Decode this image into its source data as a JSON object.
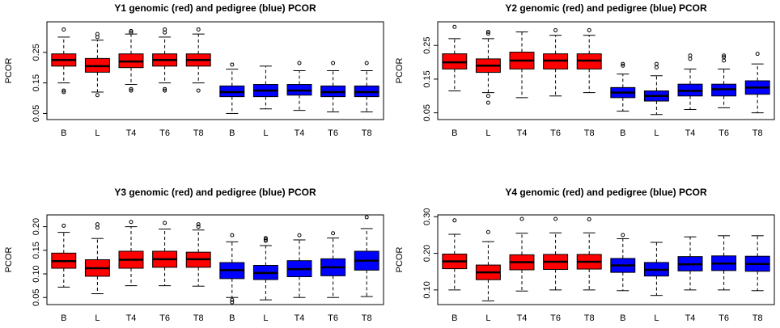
{
  "chart_data": [
    {
      "type": "boxplot",
      "title": "Y1 genomic (red) and pedigree (blue) PCOR",
      "ylabel": "PCOR",
      "ylim": [
        0.03,
        0.35
      ],
      "yticks": [
        0.05,
        0.15,
        0.25
      ],
      "ytick_labels": [
        "0.05",
        "0.15",
        "0.25"
      ],
      "categories": [
        "B",
        "L",
        "T4",
        "T6",
        "T8",
        "B",
        "L",
        "T4",
        "T6",
        "T8"
      ],
      "colors": [
        "#ff0000",
        "#ff0000",
        "#ff0000",
        "#ff0000",
        "#ff0000",
        "#0000ff",
        "#0000ff",
        "#0000ff",
        "#0000ff",
        "#0000ff"
      ],
      "boxes": [
        {
          "min": 0.15,
          "q1": 0.205,
          "median": 0.225,
          "q3": 0.245,
          "max": 0.3,
          "outliers": [
            0.325,
            0.125,
            0.12
          ]
        },
        {
          "min": 0.12,
          "q1": 0.185,
          "median": 0.205,
          "q3": 0.23,
          "max": 0.29,
          "outliers": [
            0.31,
            0.3,
            0.11
          ]
        },
        {
          "min": 0.145,
          "q1": 0.2,
          "median": 0.22,
          "q3": 0.245,
          "max": 0.31,
          "outliers": [
            0.32,
            0.315,
            0.13,
            0.125
          ]
        },
        {
          "min": 0.15,
          "q1": 0.205,
          "median": 0.225,
          "q3": 0.245,
          "max": 0.3,
          "outliers": [
            0.325,
            0.315,
            0.13,
            0.125
          ]
        },
        {
          "min": 0.15,
          "q1": 0.205,
          "median": 0.225,
          "q3": 0.245,
          "max": 0.31,
          "outliers": [
            0.325,
            0.125
          ]
        },
        {
          "min": 0.05,
          "q1": 0.105,
          "median": 0.12,
          "q3": 0.14,
          "max": 0.195,
          "outliers": [
            0.21
          ]
        },
        {
          "min": 0.065,
          "q1": 0.105,
          "median": 0.125,
          "q3": 0.145,
          "max": 0.205,
          "outliers": []
        },
        {
          "min": 0.06,
          "q1": 0.11,
          "median": 0.125,
          "q3": 0.145,
          "max": 0.19,
          "outliers": [
            0.215
          ]
        },
        {
          "min": 0.055,
          "q1": 0.105,
          "median": 0.12,
          "q3": 0.14,
          "max": 0.19,
          "outliers": [
            0.215
          ]
        },
        {
          "min": 0.055,
          "q1": 0.105,
          "median": 0.12,
          "q3": 0.14,
          "max": 0.19,
          "outliers": [
            0.215
          ]
        }
      ]
    },
    {
      "type": "boxplot",
      "title": "Y2 genomic (red) and pedigree (blue) PCOR",
      "ylabel": "PCOR",
      "ylim": [
        0.03,
        0.32
      ],
      "yticks": [
        0.05,
        0.15,
        0.25
      ],
      "ytick_labels": [
        "0.05",
        "0.15",
        "0.25"
      ],
      "categories": [
        "B",
        "L",
        "T4",
        "T6",
        "T8",
        "B",
        "L",
        "T4",
        "T6",
        "T8"
      ],
      "colors": [
        "#ff0000",
        "#ff0000",
        "#ff0000",
        "#ff0000",
        "#ff0000",
        "#0000ff",
        "#0000ff",
        "#0000ff",
        "#0000ff",
        "#0000ff"
      ],
      "boxes": [
        {
          "min": 0.115,
          "q1": 0.18,
          "median": 0.2,
          "q3": 0.225,
          "max": 0.27,
          "outliers": [
            0.305
          ]
        },
        {
          "min": 0.11,
          "q1": 0.17,
          "median": 0.19,
          "q3": 0.21,
          "max": 0.27,
          "outliers": [
            0.29,
            0.285,
            0.1,
            0.08
          ]
        },
        {
          "min": 0.095,
          "q1": 0.18,
          "median": 0.205,
          "q3": 0.23,
          "max": 0.29,
          "outliers": []
        },
        {
          "min": 0.1,
          "q1": 0.18,
          "median": 0.205,
          "q3": 0.225,
          "max": 0.28,
          "outliers": [
            0.295
          ]
        },
        {
          "min": 0.11,
          "q1": 0.18,
          "median": 0.205,
          "q3": 0.225,
          "max": 0.28,
          "outliers": [
            0.295
          ]
        },
        {
          "min": 0.055,
          "q1": 0.095,
          "median": 0.11,
          "q3": 0.125,
          "max": 0.165,
          "outliers": [
            0.195,
            0.19
          ]
        },
        {
          "min": 0.045,
          "q1": 0.085,
          "median": 0.1,
          "q3": 0.115,
          "max": 0.16,
          "outliers": [
            0.195,
            0.185
          ]
        },
        {
          "min": 0.06,
          "q1": 0.1,
          "median": 0.115,
          "q3": 0.135,
          "max": 0.18,
          "outliers": [
            0.22,
            0.21
          ]
        },
        {
          "min": 0.065,
          "q1": 0.1,
          "median": 0.12,
          "q3": 0.135,
          "max": 0.18,
          "outliers": [
            0.22,
            0.215,
            0.205
          ]
        },
        {
          "min": 0.05,
          "q1": 0.105,
          "median": 0.125,
          "q3": 0.145,
          "max": 0.195,
          "outliers": [
            0.225
          ]
        }
      ]
    },
    {
      "type": "boxplot",
      "title": "Y3 genomic (red) and pedigree (blue) PCOR",
      "ylabel": "PCOR",
      "ylim": [
        0.035,
        0.225
      ],
      "yticks": [
        0.05,
        0.1,
        0.15,
        0.2
      ],
      "ytick_labels": [
        "0.05",
        "0.10",
        "0.15",
        "0.20"
      ],
      "categories": [
        "B",
        "L",
        "T4",
        "T6",
        "T8",
        "B",
        "L",
        "T4",
        "T6",
        "T8"
      ],
      "colors": [
        "#ff0000",
        "#ff0000",
        "#ff0000",
        "#ff0000",
        "#ff0000",
        "#0000ff",
        "#0000ff",
        "#0000ff",
        "#0000ff",
        "#0000ff"
      ],
      "boxes": [
        {
          "min": 0.072,
          "q1": 0.112,
          "median": 0.127,
          "q3": 0.144,
          "max": 0.188,
          "outliers": [
            0.202
          ]
        },
        {
          "min": 0.058,
          "q1": 0.095,
          "median": 0.112,
          "q3": 0.13,
          "max": 0.175,
          "outliers": [
            0.205,
            0.198
          ]
        },
        {
          "min": 0.075,
          "q1": 0.112,
          "median": 0.13,
          "q3": 0.148,
          "max": 0.2,
          "outliers": [
            0.21
          ]
        },
        {
          "min": 0.075,
          "q1": 0.114,
          "median": 0.131,
          "q3": 0.148,
          "max": 0.195,
          "outliers": [
            0.208
          ]
        },
        {
          "min": 0.074,
          "q1": 0.114,
          "median": 0.131,
          "q3": 0.146,
          "max": 0.193,
          "outliers": [
            0.205,
            0.2
          ]
        },
        {
          "min": 0.05,
          "q1": 0.09,
          "median": 0.108,
          "q3": 0.124,
          "max": 0.168,
          "outliers": [
            0.182,
            0.045,
            0.04
          ]
        },
        {
          "min": 0.045,
          "q1": 0.088,
          "median": 0.102,
          "q3": 0.118,
          "max": 0.16,
          "outliers": [
            0.176,
            0.173,
            0.17
          ]
        },
        {
          "min": 0.05,
          "q1": 0.094,
          "median": 0.11,
          "q3": 0.128,
          "max": 0.172,
          "outliers": [
            0.182
          ]
        },
        {
          "min": 0.05,
          "q1": 0.096,
          "median": 0.114,
          "q3": 0.132,
          "max": 0.176,
          "outliers": [
            0.186
          ]
        },
        {
          "min": 0.052,
          "q1": 0.108,
          "median": 0.128,
          "q3": 0.148,
          "max": 0.196,
          "outliers": [
            0.22
          ]
        }
      ]
    },
    {
      "type": "boxplot",
      "title": "Y4 genomic (red) and pedigree (blue) PCOR",
      "ylabel": "PCOR",
      "ylim": [
        0.06,
        0.305
      ],
      "yticks": [
        0.1,
        0.2,
        0.3
      ],
      "ytick_labels": [
        "0.10",
        "0.20",
        "0.30"
      ],
      "categories": [
        "B",
        "L",
        "T4",
        "T6",
        "T8",
        "B",
        "L",
        "T4",
        "T6",
        "T8"
      ],
      "colors": [
        "#ff0000",
        "#ff0000",
        "#ff0000",
        "#ff0000",
        "#ff0000",
        "#0000ff",
        "#0000ff",
        "#0000ff",
        "#0000ff",
        "#0000ff"
      ],
      "boxes": [
        {
          "min": 0.1,
          "q1": 0.158,
          "median": 0.178,
          "q3": 0.198,
          "max": 0.252,
          "outliers": [
            0.29
          ]
        },
        {
          "min": 0.07,
          "q1": 0.128,
          "median": 0.148,
          "q3": 0.168,
          "max": 0.232,
          "outliers": [
            0.258
          ]
        },
        {
          "min": 0.097,
          "q1": 0.155,
          "median": 0.176,
          "q3": 0.196,
          "max": 0.255,
          "outliers": [
            0.294
          ]
        },
        {
          "min": 0.1,
          "q1": 0.156,
          "median": 0.177,
          "q3": 0.197,
          "max": 0.256,
          "outliers": [
            0.294
          ]
        },
        {
          "min": 0.1,
          "q1": 0.157,
          "median": 0.177,
          "q3": 0.197,
          "max": 0.256,
          "outliers": [
            0.293
          ]
        },
        {
          "min": 0.098,
          "q1": 0.148,
          "median": 0.167,
          "q3": 0.186,
          "max": 0.24,
          "outliers": [
            0.25
          ]
        },
        {
          "min": 0.085,
          "q1": 0.138,
          "median": 0.155,
          "q3": 0.175,
          "max": 0.23,
          "outliers": []
        },
        {
          "min": 0.1,
          "q1": 0.152,
          "median": 0.17,
          "q3": 0.191,
          "max": 0.245,
          "outliers": []
        },
        {
          "min": 0.1,
          "q1": 0.153,
          "median": 0.172,
          "q3": 0.193,
          "max": 0.248,
          "outliers": []
        },
        {
          "min": 0.098,
          "q1": 0.151,
          "median": 0.171,
          "q3": 0.192,
          "max": 0.248,
          "outliers": []
        }
      ]
    }
  ]
}
